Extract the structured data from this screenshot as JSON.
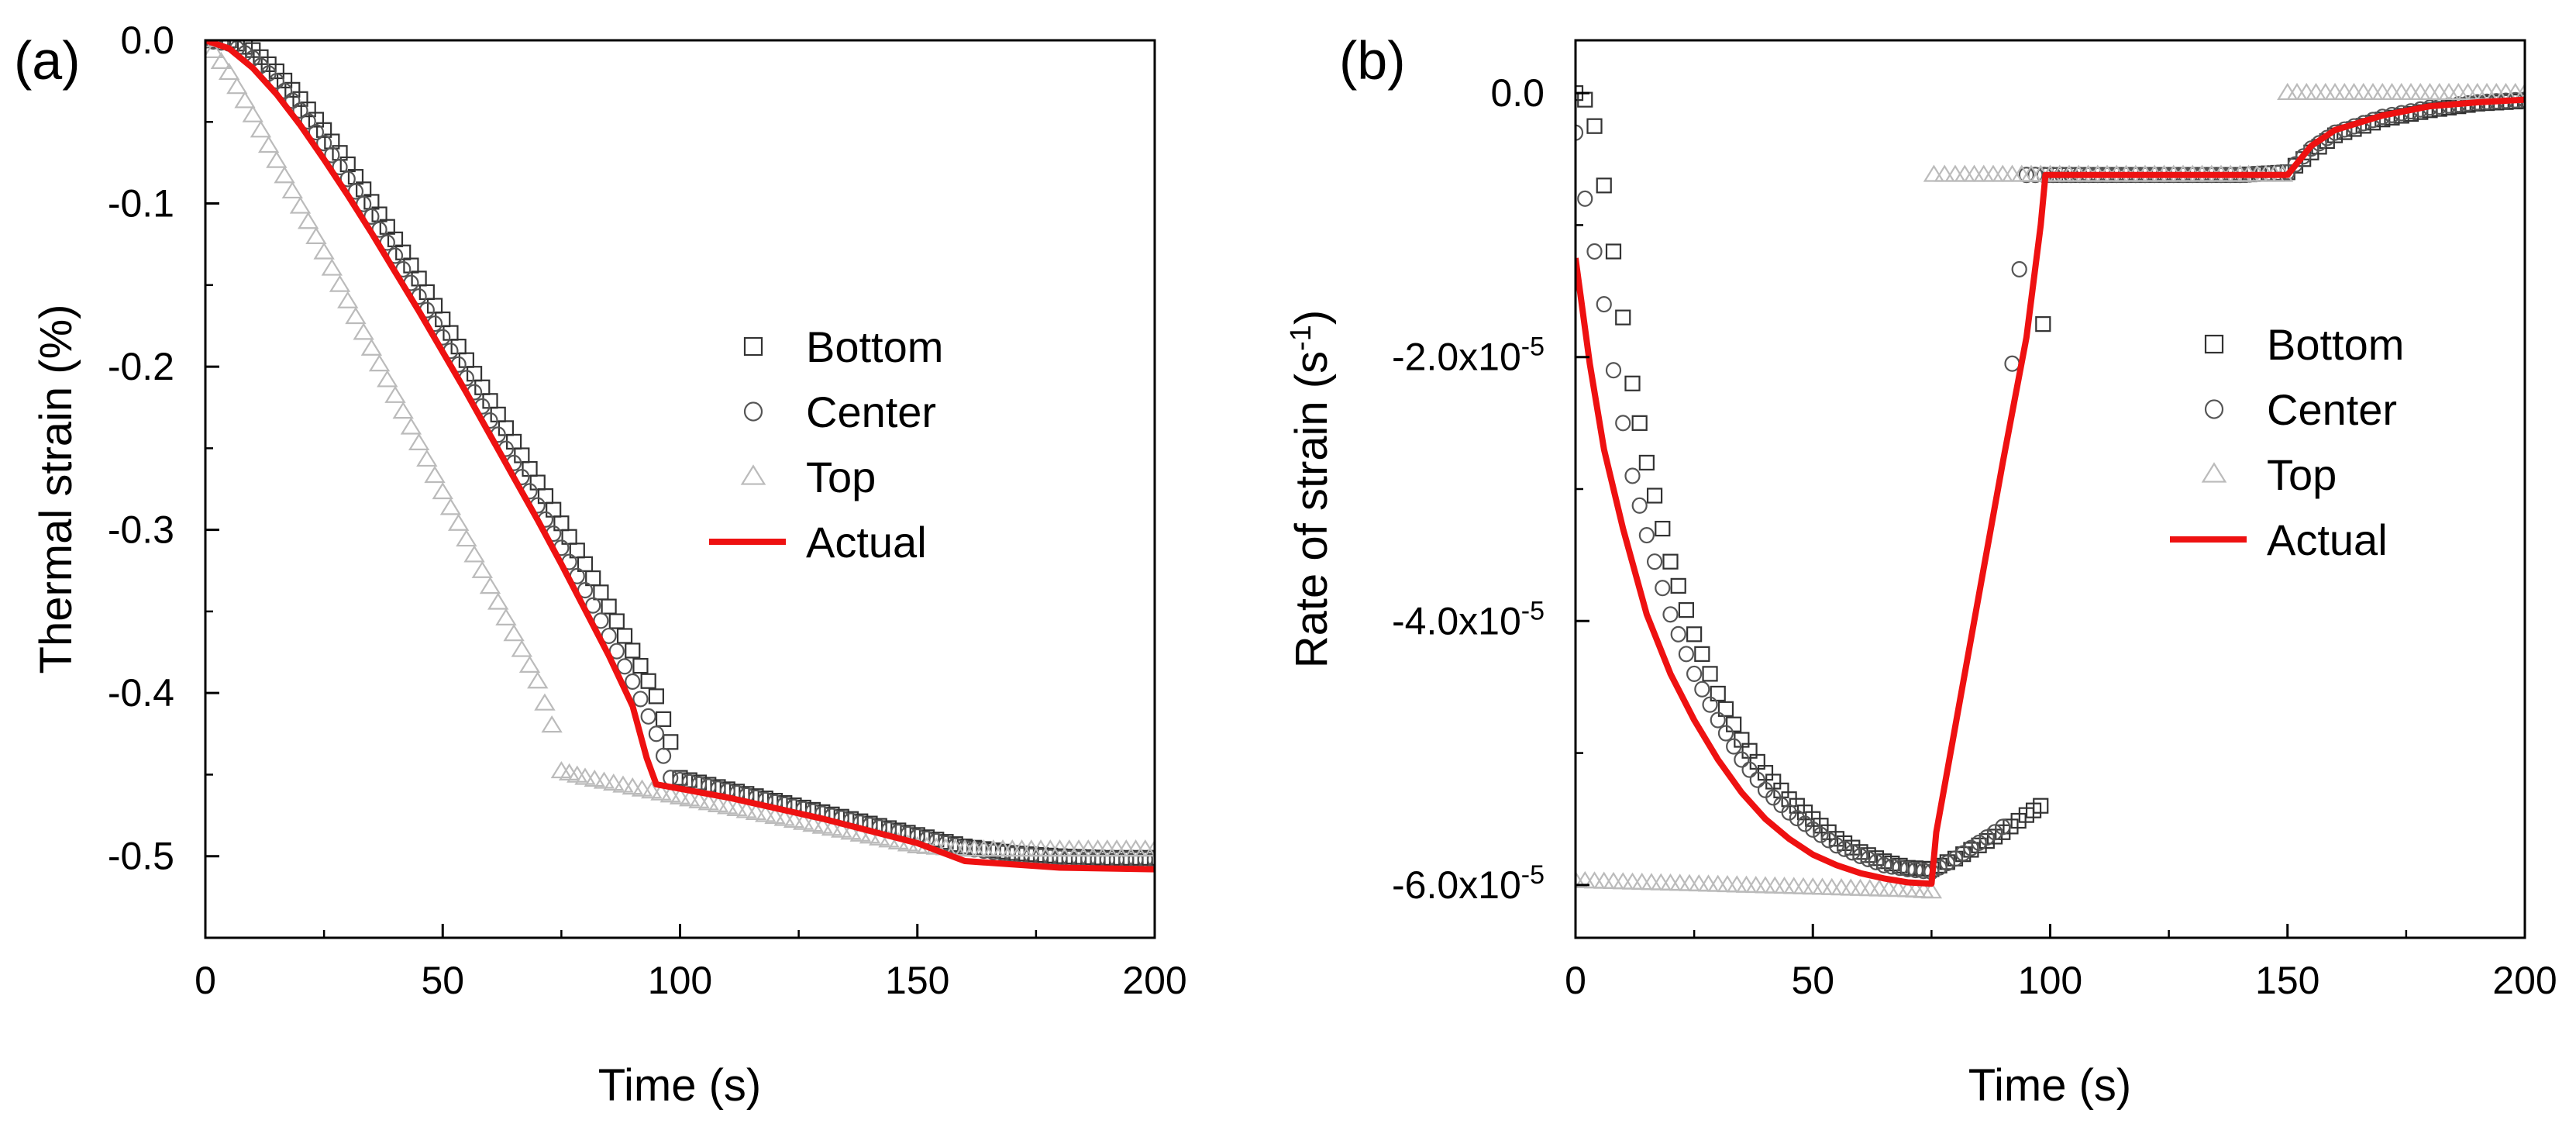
{
  "chart_data": [
    {
      "panel_label": "(a)",
      "type": "scatter",
      "xlabel": "Time (s)",
      "ylabel": "Thermal strain (%)",
      "xlim": [
        0,
        200
      ],
      "ylim": [
        -0.55,
        0.0
      ],
      "x_ticks": [
        0,
        50,
        100,
        150,
        200
      ],
      "x_tick_labels": [
        "0",
        "50",
        "100",
        "150",
        "200"
      ],
      "y_ticks": [
        0.0,
        -0.1,
        -0.2,
        -0.3,
        -0.4,
        -0.5
      ],
      "y_tick_labels": [
        "0.0",
        "-0.1",
        "-0.2",
        "-0.3",
        "-0.4",
        "-0.5"
      ],
      "grid": false,
      "legend_position": "center-right",
      "series": [
        {
          "name": "Bottom",
          "marker": "square",
          "color": "#333333",
          "points": [
            [
              0,
              0
            ],
            [
              5,
              0
            ],
            [
              10,
              -0.006
            ],
            [
              15,
              -0.019
            ],
            [
              20,
              -0.036
            ],
            [
              25,
              -0.055
            ],
            [
              30,
              -0.076
            ],
            [
              35,
              -0.099
            ],
            [
              40,
              -0.122
            ],
            [
              45,
              -0.146
            ],
            [
              50,
              -0.171
            ],
            [
              55,
              -0.196
            ],
            [
              60,
              -0.221
            ],
            [
              65,
              -0.246
            ],
            [
              70,
              -0.271
            ],
            [
              75,
              -0.296
            ],
            [
              80,
              -0.321
            ],
            [
              85,
              -0.347
            ],
            [
              90,
              -0.374
            ],
            [
              95,
              -0.402
            ],
            [
              98,
              -0.43
            ],
            [
              100,
              -0.452
            ],
            [
              110,
              -0.459
            ],
            [
              120,
              -0.466
            ],
            [
              130,
              -0.473
            ],
            [
              140,
              -0.48
            ],
            [
              150,
              -0.487
            ],
            [
              160,
              -0.494
            ],
            [
              170,
              -0.498
            ],
            [
              180,
              -0.5
            ],
            [
              190,
              -0.501
            ],
            [
              200,
              -0.501
            ]
          ]
        },
        {
          "name": "Center",
          "marker": "circle",
          "color": "#555555",
          "points": [
            [
              0,
              0
            ],
            [
              5,
              -0.002
            ],
            [
              10,
              -0.011
            ],
            [
              15,
              -0.025
            ],
            [
              20,
              -0.043
            ],
            [
              25,
              -0.063
            ],
            [
              30,
              -0.085
            ],
            [
              35,
              -0.108
            ],
            [
              40,
              -0.132
            ],
            [
              45,
              -0.157
            ],
            [
              50,
              -0.182
            ],
            [
              55,
              -0.207
            ],
            [
              60,
              -0.233
            ],
            [
              65,
              -0.259
            ],
            [
              70,
              -0.285
            ],
            [
              75,
              -0.311
            ],
            [
              80,
              -0.337
            ],
            [
              85,
              -0.365
            ],
            [
              90,
              -0.393
            ],
            [
              95,
              -0.425
            ],
            [
              98,
              -0.452
            ],
            [
              110,
              -0.46
            ],
            [
              120,
              -0.467
            ],
            [
              130,
              -0.474
            ],
            [
              140,
              -0.481
            ],
            [
              150,
              -0.488
            ],
            [
              160,
              -0.495
            ],
            [
              170,
              -0.499
            ],
            [
              180,
              -0.501
            ],
            [
              190,
              -0.502
            ],
            [
              200,
              -0.502
            ]
          ]
        },
        {
          "name": "Top",
          "marker": "triangle",
          "color": "#bbbbbb",
          "points": [
            [
              0,
              0
            ],
            [
              5,
              -0.02
            ],
            [
              10,
              -0.046
            ],
            [
              15,
              -0.074
            ],
            [
              20,
              -0.102
            ],
            [
              25,
              -0.13
            ],
            [
              30,
              -0.16
            ],
            [
              35,
              -0.189
            ],
            [
              40,
              -0.218
            ],
            [
              45,
              -0.247
            ],
            [
              50,
              -0.277
            ],
            [
              55,
              -0.306
            ],
            [
              60,
              -0.335
            ],
            [
              65,
              -0.364
            ],
            [
              70,
              -0.393
            ],
            [
              73,
              -0.42
            ],
            [
              75,
              -0.448
            ],
            [
              80,
              -0.452
            ],
            [
              90,
              -0.458
            ],
            [
              100,
              -0.464
            ],
            [
              110,
              -0.47
            ],
            [
              120,
              -0.476
            ],
            [
              130,
              -0.482
            ],
            [
              140,
              -0.488
            ],
            [
              150,
              -0.494
            ],
            [
              160,
              -0.496
            ],
            [
              170,
              -0.496
            ],
            [
              180,
              -0.496
            ],
            [
              190,
              -0.496
            ],
            [
              200,
              -0.496
            ]
          ]
        },
        {
          "name": "Actual",
          "marker": "line",
          "color": "#ee1111",
          "points": [
            [
              0,
              0
            ],
            [
              5,
              -0.005
            ],
            [
              10,
              -0.017
            ],
            [
              15,
              -0.033
            ],
            [
              20,
              -0.052
            ],
            [
              25,
              -0.073
            ],
            [
              30,
              -0.095
            ],
            [
              35,
              -0.118
            ],
            [
              40,
              -0.142
            ],
            [
              45,
              -0.166
            ],
            [
              50,
              -0.191
            ],
            [
              55,
              -0.216
            ],
            [
              60,
              -0.242
            ],
            [
              65,
              -0.268
            ],
            [
              70,
              -0.294
            ],
            [
              75,
              -0.321
            ],
            [
              80,
              -0.349
            ],
            [
              85,
              -0.377
            ],
            [
              90,
              -0.408
            ],
            [
              93,
              -0.44
            ],
            [
              95,
              -0.456
            ],
            [
              110,
              -0.464
            ],
            [
              130,
              -0.477
            ],
            [
              150,
              -0.492
            ],
            [
              160,
              -0.503
            ],
            [
              180,
              -0.507
            ],
            [
              200,
              -0.508
            ]
          ]
        }
      ]
    },
    {
      "panel_label": "(b)",
      "type": "scatter",
      "xlabel": "Time (s)",
      "ylabel": "Rate of strain (s-1)",
      "xlim": [
        0,
        200
      ],
      "ylim": [
        -6.4e-05,
        4e-06
      ],
      "x_ticks": [
        0,
        50,
        100,
        150,
        200
      ],
      "x_tick_labels": [
        "0",
        "50",
        "100",
        "150",
        "200"
      ],
      "y_ticks": [
        0,
        -2e-05,
        -4e-05,
        -6e-05
      ],
      "y_tick_labels": [
        "0.0",
        "-2.0x10",
        "-4.0x10",
        "-6.0x10"
      ],
      "y_tick_exponent": "-5",
      "grid": false,
      "legend_position": "center-right",
      "series": [
        {
          "name": "Bottom",
          "marker": "square",
          "color": "#333333",
          "points": [
            [
              0,
              -0.0
            ],
            [
              2,
              -5e-07
            ],
            [
              4,
              -2.5e-06
            ],
            [
              6,
              -7e-06
            ],
            [
              8,
              -1.2e-05
            ],
            [
              10,
              -1.7e-05
            ],
            [
              12,
              -2.2e-05
            ],
            [
              15,
              -2.8e-05
            ],
            [
              20,
              -3.55e-05
            ],
            [
              25,
              -4.1e-05
            ],
            [
              30,
              -4.55e-05
            ],
            [
              35,
              -4.9e-05
            ],
            [
              40,
              -5.15e-05
            ],
            [
              45,
              -5.35e-05
            ],
            [
              50,
              -5.5e-05
            ],
            [
              55,
              -5.65e-05
            ],
            [
              60,
              -5.75e-05
            ],
            [
              65,
              -5.82e-05
            ],
            [
              70,
              -5.87e-05
            ],
            [
              75,
              -5.88e-05
            ],
            [
              80,
              -5.8e-05
            ],
            [
              85,
              -5.7e-05
            ],
            [
              90,
              -5.6e-05
            ],
            [
              95,
              -5.47e-05
            ],
            [
              98,
              -5.4e-05
            ],
            [
              98.5,
              -1.75e-05
            ],
            [
              100,
              -6.2e-06
            ],
            [
              110,
              -6.2e-06
            ],
            [
              120,
              -6.2e-06
            ],
            [
              130,
              -6.2e-06
            ],
            [
              140,
              -6.2e-06
            ],
            [
              150,
              -6e-06
            ],
            [
              155,
              -4.5e-06
            ],
            [
              160,
              -3.2e-06
            ],
            [
              170,
              -2e-06
            ],
            [
              180,
              -1.3e-06
            ],
            [
              190,
              -8e-07
            ],
            [
              200,
              -6e-07
            ]
          ]
        },
        {
          "name": "Center",
          "marker": "circle",
          "color": "#555555",
          "points": [
            [
              0,
              -3e-06
            ],
            [
              2,
              -8e-06
            ],
            [
              4,
              -1.2e-05
            ],
            [
              6,
              -1.6e-05
            ],
            [
              8,
              -2.1e-05
            ],
            [
              10,
              -2.5e-05
            ],
            [
              12,
              -2.9e-05
            ],
            [
              15,
              -3.35e-05
            ],
            [
              20,
              -3.95e-05
            ],
            [
              25,
              -4.4e-05
            ],
            [
              30,
              -4.75e-05
            ],
            [
              35,
              -5.05e-05
            ],
            [
              40,
              -5.28e-05
            ],
            [
              45,
              -5.45e-05
            ],
            [
              50,
              -5.58e-05
            ],
            [
              55,
              -5.7e-05
            ],
            [
              60,
              -5.78e-05
            ],
            [
              65,
              -5.85e-05
            ],
            [
              70,
              -5.88e-05
            ],
            [
              75,
              -5.9e-05
            ],
            [
              80,
              -5.8e-05
            ],
            [
              85,
              -5.68e-05
            ],
            [
              90,
              -5.56e-05
            ],
            [
              92,
              -2.05e-05
            ],
            [
              95,
              -6.2e-06
            ],
            [
              110,
              -6.2e-06
            ],
            [
              120,
              -6.2e-06
            ],
            [
              130,
              -6.2e-06
            ],
            [
              140,
              -6.2e-06
            ],
            [
              150,
              -6e-06
            ],
            [
              155,
              -4.2e-06
            ],
            [
              160,
              -3e-06
            ],
            [
              170,
              -1.8e-06
            ],
            [
              180,
              -1.1e-06
            ],
            [
              190,
              -7e-07
            ],
            [
              200,
              -5e-07
            ]
          ]
        },
        {
          "name": "Top",
          "marker": "triangle",
          "color": "#bbbbbb",
          "points": [
            [
              0,
              -5.97e-05
            ],
            [
              10,
              -5.98e-05
            ],
            [
              20,
              -5.99e-05
            ],
            [
              30,
              -6e-05
            ],
            [
              40,
              -6.01e-05
            ],
            [
              50,
              -6.02e-05
            ],
            [
              60,
              -6.03e-05
            ],
            [
              70,
              -6.04e-05
            ],
            [
              75,
              -6.05e-05
            ],
            [
              75.5,
              -6.2e-06
            ],
            [
              80,
              -6.2e-06
            ],
            [
              90,
              -6.2e-06
            ],
            [
              100,
              -6.2e-06
            ],
            [
              110,
              -6.2e-06
            ],
            [
              120,
              -6.2e-06
            ],
            [
              130,
              -6.2e-06
            ],
            [
              140,
              -6.2e-06
            ],
            [
              149,
              -6.2e-06
            ],
            [
              150,
              0.0
            ],
            [
              160,
              0.0
            ],
            [
              170,
              0.0
            ],
            [
              180,
              0.0
            ],
            [
              190,
              0.0
            ],
            [
              200,
              0.0
            ]
          ]
        },
        {
          "name": "Actual",
          "marker": "line",
          "color": "#ee1111",
          "points": [
            [
              0,
              -1.25e-05
            ],
            [
              3,
              -2.05e-05
            ],
            [
              6,
              -2.7e-05
            ],
            [
              10,
              -3.3e-05
            ],
            [
              15,
              -3.95e-05
            ],
            [
              20,
              -4.4e-05
            ],
            [
              25,
              -4.75e-05
            ],
            [
              30,
              -5.05e-05
            ],
            [
              35,
              -5.3e-05
            ],
            [
              40,
              -5.5e-05
            ],
            [
              45,
              -5.65e-05
            ],
            [
              50,
              -5.77e-05
            ],
            [
              55,
              -5.85e-05
            ],
            [
              60,
              -5.91e-05
            ],
            [
              65,
              -5.95e-05
            ],
            [
              70,
              -5.98e-05
            ],
            [
              75,
              -5.99e-05
            ],
            [
              76,
              -5.6e-05
            ],
            [
              80,
              -4.8e-05
            ],
            [
              85,
              -3.8e-05
            ],
            [
              90,
              -2.8e-05
            ],
            [
              95,
              -1.85e-05
            ],
            [
              98,
              -1e-05
            ],
            [
              99,
              -6.2e-06
            ],
            [
              150,
              -6.2e-06
            ],
            [
              155,
              -4e-06
            ],
            [
              160,
              -2.8e-06
            ],
            [
              170,
              -1.7e-06
            ],
            [
              180,
              -1e-06
            ],
            [
              190,
              -7e-07
            ],
            [
              200,
              -5e-07
            ]
          ]
        }
      ]
    }
  ]
}
